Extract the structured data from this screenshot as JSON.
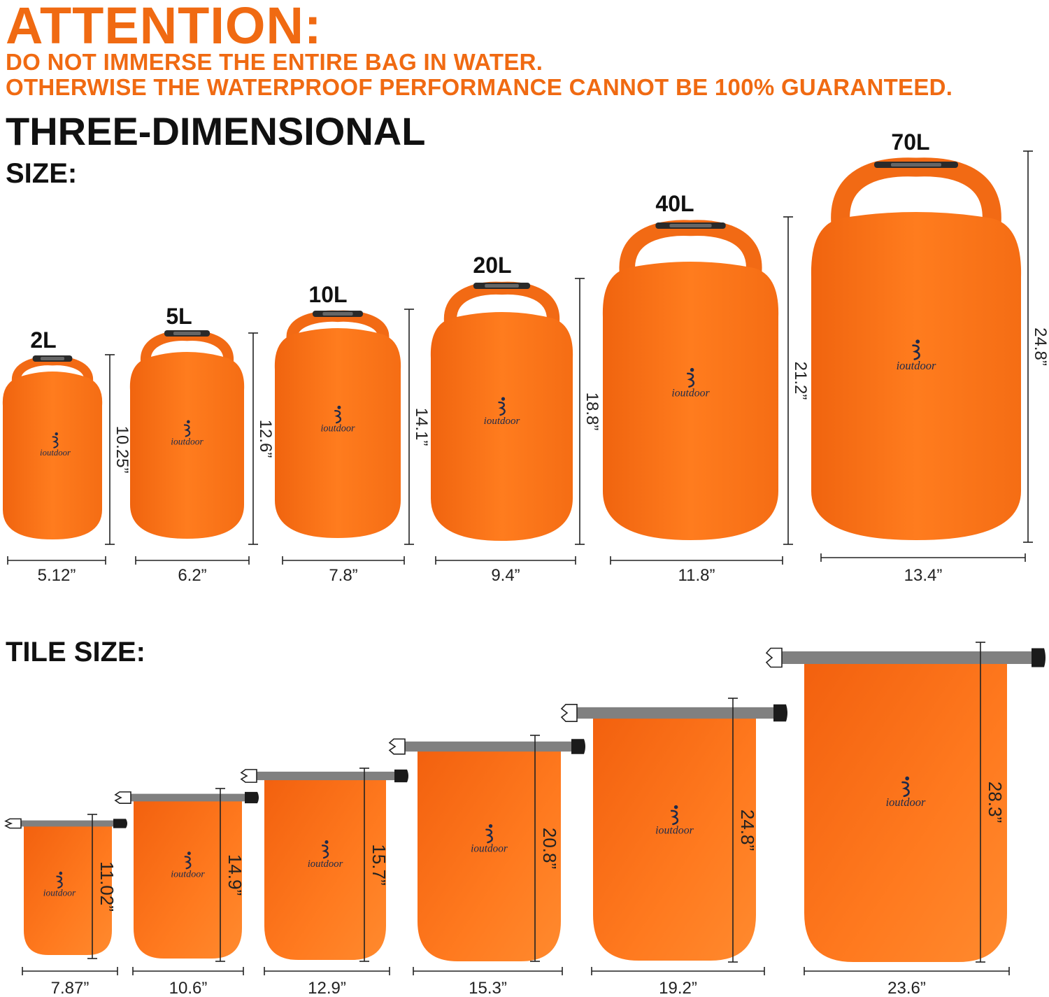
{
  "header": {
    "title": "ATTENTION:",
    "warnings": [
      "DO NOT IMMERSE THE ENTIRE BAG IN WATER.",
      "OTHERWISE THE WATERPROOF PERFORMANCE CANNOT BE 100% GUARANTEED."
    ]
  },
  "three_d": {
    "heading": "THREE-DIMENSIONAL",
    "label": "SIZE:",
    "bags": [
      {
        "capacity": "2L",
        "width": "5.12”",
        "height": "10.25”"
      },
      {
        "capacity": "5L",
        "width": "6.2”",
        "height": "12.6”"
      },
      {
        "capacity": "10L",
        "width": "7.8”",
        "height": "14.1”"
      },
      {
        "capacity": "20L",
        "width": "9.4”",
        "height": "18.8”"
      },
      {
        "capacity": "40L",
        "width": "11.8”",
        "height": "21.2”"
      },
      {
        "capacity": "70L",
        "width": "13.4”",
        "height": "24.8”"
      }
    ]
  },
  "tile": {
    "label": "TILE SIZE:",
    "bags": [
      {
        "width": "7.87”",
        "height": "11.02”"
      },
      {
        "width": "10.6”",
        "height": "14.9”"
      },
      {
        "width": "12.9”",
        "height": "15.7”"
      },
      {
        "width": "15.3”",
        "height": "20.8”"
      },
      {
        "width": "19.2”",
        "height": "24.8”"
      },
      {
        "width": "23.6”",
        "height": "28.3”"
      }
    ]
  },
  "brand": "ioutdoor",
  "colors": {
    "accent": "#f06a12",
    "bag": "#ff7a1c",
    "strap": "#808080",
    "text": "#111111"
  }
}
